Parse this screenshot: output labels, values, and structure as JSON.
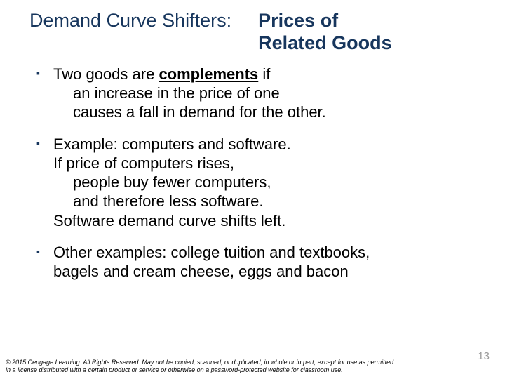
{
  "title": {
    "left": "Demand Curve Shifters:",
    "right_l1": "Prices of",
    "right_l2": "Related Goods"
  },
  "bullets": {
    "b1": {
      "pre": "Two goods are ",
      "keyword": "complements",
      "post": " if",
      "l2": "an increase in the price of one",
      "l3": "causes a fall in demand for the other."
    },
    "b2": {
      "l1": "Example:  computers and software.",
      "l2": "If price of computers rises,",
      "l3": "people buy fewer computers,",
      "l4": "and therefore less software.",
      "l5": "Software demand curve shifts left."
    },
    "b3": {
      "l1": "Other examples: college tuition and textbooks,",
      "l2": "bagels and cream cheese, eggs and bacon"
    }
  },
  "footer": "© 2015 Cengage Learning. All Rights Reserved. May not be copied, scanned, or duplicated, in whole or in part, except for use as permitted in a license distributed with a certain product or service or otherwise on a password-protected website for classroom use.",
  "page_number": "13",
  "colors": {
    "title": "#17365d",
    "marker": "#17365d",
    "text": "#000000",
    "page_num": "#9a9a9a",
    "background": "#ffffff"
  },
  "typography": {
    "title_fontsize": 27,
    "body_fontsize": 22,
    "footer_fontsize": 9,
    "page_num_fontsize": 15,
    "font_family": "Arial"
  },
  "bullet_marker": "▪"
}
